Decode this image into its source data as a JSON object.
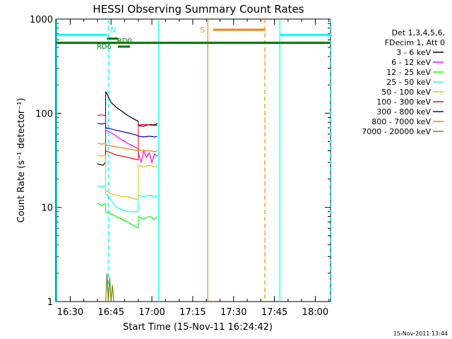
{
  "chart_data": {
    "type": "line",
    "title": "HESSI Observing Summary Count Rates",
    "xlabel": "Start Time (15-Nov-11 16:24:42)",
    "ylabel": "Count Rate (s⁻¹ detector⁻¹)",
    "yscale": "log",
    "ylim": [
      1,
      1000
    ],
    "xlim_minutes_after_1630": [
      -5.3,
      95.6
    ],
    "y_tick_labels": [
      "1",
      "10",
      "100",
      "1000"
    ],
    "y_ticks": [
      1,
      10,
      100,
      1000
    ],
    "x_tick_labels": [
      "16:30",
      "16:45",
      "17:00",
      "17:15",
      "17:30",
      "17:45",
      "18:00"
    ],
    "x_ticks_minutes": [
      0,
      15,
      30,
      45,
      60,
      75,
      90
    ],
    "timestamp": "15-Nov-2011 13:44",
    "legend": {
      "header": [
        "Det 1,3,4,5,6,",
        "FDecim 1, Att 0"
      ],
      "entries": [
        {
          "label": "3 - 6 keV",
          "color": "#000000"
        },
        {
          "label": "6 - 12 keV",
          "color": "#ff00ff"
        },
        {
          "label": "12 - 25 keV",
          "color": "#00ff00"
        },
        {
          "label": "25 - 50 keV",
          "color": "#00ffff"
        },
        {
          "label": "50 - 100 keV",
          "color": "#cccc00"
        },
        {
          "label": "100 - 300 keV",
          "color": "#ff0000"
        },
        {
          "label": "300 - 800 keV",
          "color": "#0000cc"
        },
        {
          "label": "800 - 7000 keV",
          "color": "#ff8000"
        },
        {
          "label": "7000 - 20000 keV",
          "color": "#808000"
        }
      ]
    },
    "series": [
      {
        "name": "3 - 6 keV",
        "color": "#000000",
        "segments": [
          {
            "x": [
              10.0,
              12.0,
              13.0
            ],
            "y": [
              29,
              28,
              30
            ]
          },
          {
            "x": [
              13.0,
              13.5,
              15.0,
              17.0,
              19.0,
              21.0,
              23.0,
              25.0
            ],
            "y": [
              170,
              160,
              130,
              115,
              105,
              95,
              88,
              82
            ]
          },
          {
            "x": [
              25.0,
              27.0,
              29.0,
              31.0,
              32.0
            ],
            "y": [
              74,
              73,
              76,
              75,
              78
            ]
          }
        ]
      },
      {
        "name": "6 - 12 keV",
        "color": "#ff00ff",
        "segments": [
          {
            "x": [
              13.0,
              15.0,
              17.0,
              19.0,
              21.0,
              23.0,
              25.0
            ],
            "y": [
              66,
              62,
              57,
              52,
              48,
              45,
              42
            ]
          },
          {
            "x": [
              25.0,
              26.0,
              27.0,
              28.0,
              29.0,
              30.0,
              31.0,
              32.0
            ],
            "y": [
              38,
              30,
              40,
              34,
              38,
              30,
              37,
              35
            ]
          }
        ]
      },
      {
        "name": "12 - 25 keV",
        "color": "#00ff00",
        "segments": [
          {
            "x": [
              10.0,
              11.5,
              13.0
            ],
            "y": [
              11,
              10.5,
              11
            ]
          },
          {
            "x": [
              13.0,
              15.0,
              17.0,
              19.0,
              21.0,
              23.0,
              25.0
            ],
            "y": [
              9,
              8.5,
              8,
              7.5,
              7,
              6.5,
              6
            ]
          },
          {
            "x": [
              25.0,
              27.0,
              29.0,
              31.0,
              32.0
            ],
            "y": [
              8,
              7.5,
              8,
              7.5,
              8
            ]
          }
        ]
      },
      {
        "name": "25 - 50 keV",
        "color": "#00ffff",
        "segments": [
          {
            "x": [
              10.0,
              11.5,
              13.0
            ],
            "y": [
              17,
              16.5,
              17
            ]
          },
          {
            "x": [
              13.0,
              15.0,
              17.0,
              19.0,
              21.0,
              23.0,
              25.0
            ],
            "y": [
              14,
              12,
              10,
              9.5,
              9,
              9,
              9
            ]
          },
          {
            "x": [
              25.0,
              27.0,
              29.0,
              31.0,
              32.0
            ],
            "y": [
              13.5,
              13,
              13.5,
              13,
              13.5
            ]
          }
        ]
      },
      {
        "name": "50 - 100 keV",
        "color": "#cccc00",
        "segments": [
          {
            "x": [
              10.0,
              11.5,
              13.0
            ],
            "y": [
              36,
              35,
              36
            ]
          },
          {
            "x": [
              13.0,
              15.0,
              17.0,
              19.0,
              21.0,
              23.0,
              25.0
            ],
            "y": [
              15,
              14,
              13.5,
              13,
              13,
              12.5,
              12
            ]
          },
          {
            "x": [
              25.0,
              27.0,
              29.0,
              31.0,
              32.0
            ],
            "y": [
              28,
              27,
              28,
              27,
              28
            ]
          }
        ]
      },
      {
        "name": "100 - 300 keV",
        "color": "#ff0000",
        "segments": [
          {
            "x": [
              10.0,
              11.5,
              13.0
            ],
            "y": [
              95,
              96,
              94
            ]
          },
          {
            "x": [
              13.0,
              15.0,
              17.0,
              19.0,
              21.0,
              23.0,
              25.0
            ],
            "y": [
              40,
              38,
              36,
              35,
              34,
              33,
              32
            ]
          },
          {
            "x": [
              25.0,
              27.0,
              29.0,
              31.0,
              32.0
            ],
            "y": [
              75,
              76,
              75,
              74,
              75
            ]
          }
        ]
      },
      {
        "name": "300 - 800 keV",
        "color": "#0000cc",
        "segments": [
          {
            "x": [
              10.0,
              11.5,
              13.0
            ],
            "y": [
              78,
              77,
              78
            ]
          },
          {
            "x": [
              13.0,
              15.0,
              17.0,
              19.0,
              21.0,
              23.0,
              25.0
            ],
            "y": [
              70,
              68,
              66,
              64,
              62,
              60,
              58
            ]
          },
          {
            "x": [
              25.0,
              27.0,
              29.0,
              31.0,
              32.0
            ],
            "y": [
              57,
              56,
              57,
              56,
              57
            ]
          }
        ]
      },
      {
        "name": "800 - 7000 keV",
        "color": "#ff8000",
        "segments": [
          {
            "x": [
              10.0,
              11.5,
              13.0
            ],
            "y": [
              48,
              47,
              48
            ]
          },
          {
            "x": [
              13.0,
              15.0,
              17.0,
              19.0,
              21.0,
              23.0,
              25.0
            ],
            "y": [
              46,
              45,
              44,
              43,
              42,
              41,
              40
            ]
          },
          {
            "x": [
              25.0,
              27.0,
              29.0,
              31.0,
              32.0
            ],
            "y": [
              41,
              40,
              40,
              39,
              40
            ]
          }
        ]
      },
      {
        "name": "7000 - 20000 keV",
        "color": "#808000",
        "segments": [
          {
            "x": [
              13.0,
              13.5,
              14.0,
              14.5,
              15.0,
              15.5,
              16.0
            ],
            "y": [
              1,
              2,
              1,
              1.8,
              1,
              1.5,
              1
            ]
          }
        ]
      }
    ],
    "annotations": {
      "attenuator_markers": [
        {
          "label": "N",
          "x": 14.0,
          "color": "#00ffff"
        },
        {
          "label": "S",
          "x": 50.5,
          "color": "#ff8000"
        }
      ],
      "spin_labels": [
        {
          "label": "RD6",
          "x": 11.0
        },
        {
          "label": "RD0",
          "x": 18.5
        }
      ],
      "bars": [
        {
          "name": "cyan-flag",
          "color": "#00ffff",
          "x_ranges": [
            [
              -5.0,
              13.5
            ],
            [
              77.0,
              95.5
            ]
          ],
          "y": 680
        },
        {
          "name": "orange-flag",
          "color": "#ff8000",
          "x_ranges": [
            [
              52.5,
              71.5
            ]
          ],
          "y": 770
        },
        {
          "name": "green-flag",
          "color": "#007700",
          "x_ranges": [
            [
              -5.0,
              95.5
            ]
          ],
          "y": 560
        },
        {
          "name": "rd6-flag",
          "color": "#007700",
          "x_ranges": [
            [
              13.5,
              17.5
            ]
          ],
          "y": 620
        },
        {
          "name": "rd0-flag",
          "color": "#007700",
          "x_ranges": [
            [
              17.5,
              22.0
            ]
          ],
          "y": 510
        }
      ],
      "vertical_lines": [
        {
          "x": -5.0,
          "color": "#00ffff",
          "style": "solid"
        },
        {
          "x": 14.0,
          "color": "#00ffff",
          "style": "dashed"
        },
        {
          "x": 32.5,
          "color": "#00ffff",
          "style": "solid"
        },
        {
          "x": 50.5,
          "color": "#ff8000",
          "style": "solid"
        },
        {
          "x": 71.5,
          "color": "#ff8000",
          "style": "dashed"
        },
        {
          "x": 77.0,
          "color": "#00ffff",
          "style": "solid"
        },
        {
          "x": 95.5,
          "color": "#00ffff",
          "style": "dashed"
        }
      ]
    }
  }
}
